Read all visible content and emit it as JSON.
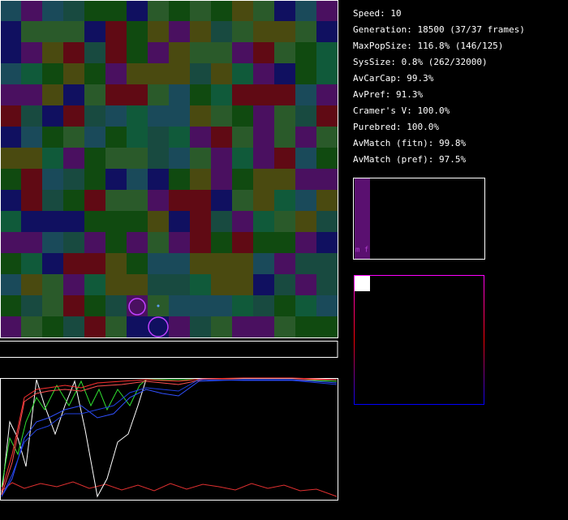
{
  "stats": [
    "Speed: 10",
    "Generation: 18500 (37/37 frames)",
    "MaxPopSize: 116.8% (146/125)",
    "SysSize: 0.8% (262/32000)",
    "AvCarCap: 99.3%",
    "AvPref: 91.3%",
    "Cramer's V: 100.0%",
    "Purebred: 100.0%",
    "AvMatch (fitn): 99.8%",
    "AvMatch (pref): 97.5%"
  ],
  "pref_box": {
    "label": "m f"
  }
}
